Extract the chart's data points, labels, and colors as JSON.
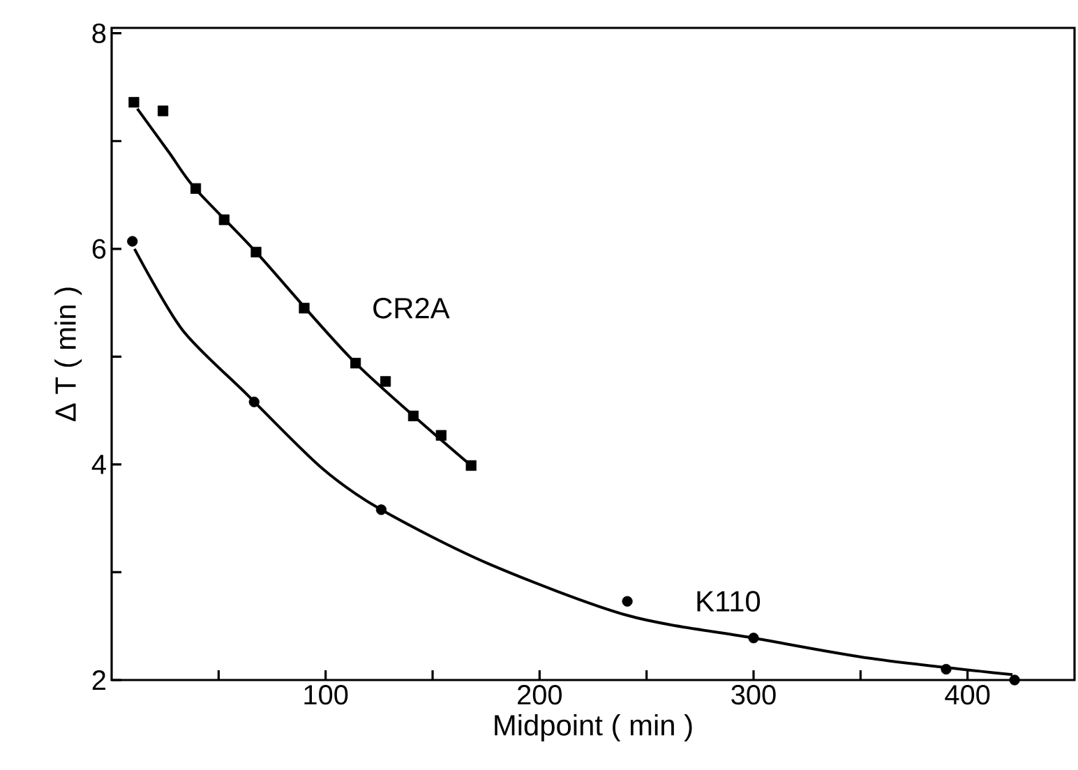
{
  "chart_data": {
    "type": "scatter",
    "xlabel": "Midpoint ( min )",
    "ylabel": "Δ T ( min )",
    "xlim": [
      0,
      450
    ],
    "ylim": [
      2,
      8.05
    ],
    "xticks": [
      {
        "value": 50,
        "label": null
      },
      100,
      {
        "value": 150,
        "label": null
      },
      200,
      {
        "value": 250,
        "label": null
      },
      300,
      {
        "value": 350,
        "label": null
      },
      400
    ],
    "yticks": [
      2,
      {
        "value": 3,
        "label": null
      },
      4,
      {
        "value": 5,
        "label": null
      },
      6,
      {
        "value": 7,
        "label": null
      },
      8
    ],
    "series": [
      {
        "name": "CR2A",
        "marker": "square",
        "color": "#000000",
        "x": [
          10.4,
          24,
          39.3,
          52.6,
          67.5,
          90,
          114,
          128,
          141,
          154,
          168
        ],
        "values": [
          7.36,
          7.28,
          6.56,
          6.27,
          5.97,
          5.45,
          4.94,
          4.77,
          4.45,
          4.27,
          3.99
        ]
      },
      {
        "type": "line",
        "marker": "none",
        "line_style": "solid",
        "color": "#000000",
        "x": [
          12,
          27,
          39,
          67.5,
          114,
          168
        ],
        "values": [
          7.3,
          6.89,
          6.56,
          5.97,
          4.94,
          3.99
        ]
      },
      {
        "name": "K110",
        "marker": "circle",
        "color": "#000000",
        "x": [
          9.7,
          66.6,
          126,
          241,
          300,
          390,
          422
        ],
        "values": [
          6.07,
          4.58,
          3.58,
          2.73,
          2.39,
          2.1,
          2.0
        ]
      },
      {
        "type": "line",
        "marker": "none",
        "line_style": "solid",
        "color": "#000000",
        "x": [
          10.7,
          33,
          62.7,
          98,
          126,
          176,
          241,
          300,
          355,
          421
        ],
        "values": [
          6.0,
          5.25,
          4.66,
          3.97,
          3.58,
          3.08,
          2.6,
          2.39,
          2.2,
          2.05
        ]
      }
    ]
  }
}
